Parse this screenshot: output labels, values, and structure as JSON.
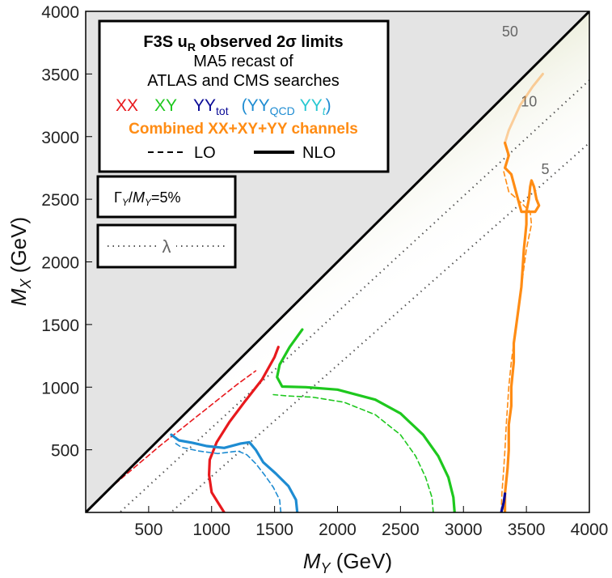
{
  "chart_data": {
    "type": "line",
    "xlabel_main": "M",
    "xlabel_sub": "Y",
    "xlabel_unit": " (GeV)",
    "ylabel_main": "M",
    "ylabel_sub": "X",
    "ylabel_unit": " (GeV)",
    "xlim": [
      0,
      4000
    ],
    "ylim": [
      0,
      4000
    ],
    "x_ticks": [
      500,
      1000,
      1500,
      2000,
      2500,
      3000,
      3500,
      4000
    ],
    "y_ticks": [
      500,
      1000,
      1500,
      2000,
      2500,
      3000,
      3500,
      4000
    ],
    "x_tick_labels": [
      "500",
      "1000",
      "1500",
      "2000",
      "2500",
      "3000",
      "3500",
      "4000"
    ],
    "y_tick_labels": [
      "500",
      "1000",
      "1500",
      "2000",
      "2500",
      "3000",
      "3500",
      "4000"
    ],
    "excluded_region": "M_X < M_Y",
    "legend": {
      "title_prefix": "F3S u",
      "title_sub": "R",
      "title_suffix": " observed 2σ limits",
      "line2": "MA5 recast of",
      "line3": "ATLAS and CMS searches",
      "xx": "XX",
      "xy": "XY",
      "yy_prefix": "YY",
      "yy_sub": "tot",
      "paren_open": "(",
      "yyqcd_prefix": "YY",
      "yyqcd_sub": "QCD",
      "yyt_prefix": "YY",
      "yyt_sub": "t",
      "paren_close": ")",
      "combined": "Combined XX+XY+YY channels",
      "lo": "LO",
      "nlo": "NLO"
    },
    "width_box": {
      "label_gamma": "Γ",
      "label_sub1": "Y",
      "label_slash": "/",
      "label_m": "M",
      "label_sub2": "Y",
      "label_value": "=5%"
    },
    "lambda_box": {
      "label": "λ"
    },
    "lambda_contours": [
      {
        "label": "50",
        "x": [
          0,
          4000
        ],
        "y": [
          0,
          4000
        ]
      },
      {
        "label": "10",
        "x": [
          0,
          4000
        ],
        "y": [
          -250,
          3450
        ]
      },
      {
        "label": "5",
        "x": [
          0,
          4000
        ],
        "y": [
          -600,
          2950
        ]
      }
    ],
    "colors": {
      "XX": "#e8191d",
      "XY": "#1ec81e",
      "YY_tot": "#0a0a96",
      "YY_QCD": "#1e8cd2",
      "YY_t": "#28c8d2",
      "combined": "#ff8c14",
      "excluded": "#e4e4e4",
      "contour": "#555555"
    },
    "series": [
      {
        "name": "XX",
        "order": "NLO",
        "color": "#e8191d",
        "x": [
          1100,
          1050,
          1000,
          980,
          985,
          1040,
          1140,
          1260,
          1400,
          1500,
          1530
        ],
        "y": [
          0,
          80,
          160,
          300,
          420,
          560,
          720,
          880,
          1060,
          1240,
          1320
        ]
      },
      {
        "name": "XX",
        "order": "LO",
        "color": "#e8191d",
        "x": [
          50,
          200,
          400,
          600,
          800,
          1000,
          1200,
          1350
        ],
        "y": [
          50,
          200,
          370,
          540,
          700,
          860,
          1020,
          1130
        ]
      },
      {
        "name": "XY",
        "order": "NLO",
        "color": "#1ec81e",
        "x": [
          2930,
          2920,
          2880,
          2800,
          2680,
          2500,
          2300,
          2000,
          1750,
          1560,
          1520,
          1540,
          1620,
          1720
        ],
        "y": [
          0,
          120,
          280,
          450,
          620,
          790,
          900,
          980,
          1000,
          1005,
          1080,
          1180,
          1320,
          1460
        ]
      },
      {
        "name": "XY",
        "order": "LO",
        "color": "#1ec81e",
        "x": [
          2760,
          2750,
          2700,
          2620,
          2500,
          2300,
          2050,
          1800,
          1600,
          1490
        ],
        "y": [
          0,
          120,
          280,
          450,
          620,
          780,
          880,
          920,
          930,
          940
        ]
      },
      {
        "name": "YY_QCD",
        "order": "NLO",
        "color": "#1e8cd2",
        "x": [
          1680,
          1670,
          1610,
          1510,
          1410,
          1350,
          1300,
          1230,
          1100,
          960,
          850,
          740,
          680
        ],
        "y": [
          0,
          100,
          210,
          310,
          400,
          500,
          560,
          550,
          515,
          530,
          555,
          575,
          620
        ]
      },
      {
        "name": "YY_QCD",
        "order": "LO",
        "color": "#1e8cd2",
        "x": [
          1550,
          1540,
          1490,
          1420,
          1350,
          1280,
          1210,
          1050,
          900,
          760,
          700
        ],
        "y": [
          0,
          100,
          200,
          300,
          390,
          460,
          490,
          470,
          490,
          520,
          560
        ]
      },
      {
        "name": "Combined",
        "order": "NLO",
        "color": "#ff8c14",
        "x": [
          3330,
          3330,
          3350,
          3360,
          3360,
          3380,
          3380,
          3400,
          3400,
          3420,
          3440,
          3460,
          3470,
          3480,
          3490,
          3500,
          3500,
          3520,
          3530,
          3540,
          3560,
          3580,
          3600,
          3570,
          3460,
          3380,
          3330,
          3360,
          3330
        ],
        "y": [
          0,
          150,
          350,
          500,
          700,
          850,
          1000,
          1200,
          1350,
          1500,
          1650,
          1800,
          1950,
          2100,
          2200,
          2300,
          2400,
          2500,
          2600,
          2650,
          2600,
          2500,
          2450,
          2400,
          2400,
          2700,
          2750,
          2850,
          2950
        ]
      },
      {
        "name": "Combined",
        "order": "LO",
        "color": "#ff8c14",
        "x": [
          3300,
          3305,
          3320,
          3330,
          3340,
          3350,
          3360,
          3380,
          3400,
          3420,
          3440,
          3460,
          3480,
          3500,
          3520,
          3540,
          3530,
          3450,
          3360,
          3320
        ],
        "y": [
          0,
          150,
          350,
          500,
          700,
          850,
          1000,
          1200,
          1350,
          1500,
          1650,
          1800,
          1950,
          2100,
          2200,
          2300,
          2400,
          2480,
          2560,
          2720
        ]
      },
      {
        "name": "Combined",
        "order": "NLO-faint",
        "color": "#ff8c14",
        "x": [
          3330,
          3360,
          3450,
          3550,
          3630
        ],
        "y": [
          2950,
          3050,
          3250,
          3400,
          3500
        ]
      },
      {
        "name": "YY_tot",
        "order": "NLO",
        "color": "#0a0a96",
        "x": [
          3300,
          3320,
          3330
        ],
        "y": [
          0,
          80,
          150
        ]
      }
    ]
  }
}
